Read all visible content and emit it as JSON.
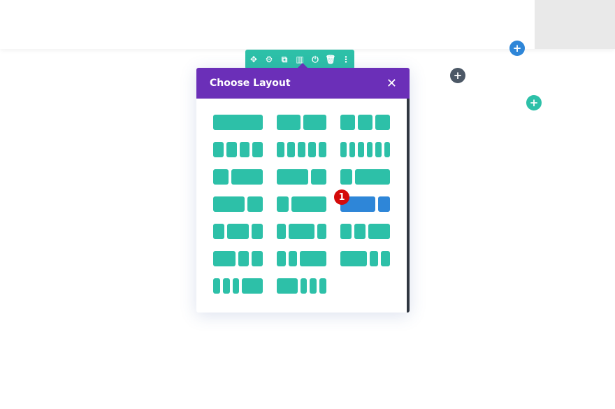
{
  "modal": {
    "title": "Choose Layout",
    "close": "✕"
  },
  "toolbar": {
    "icons": [
      {
        "name": "move-icon",
        "glyph": "✥"
      },
      {
        "name": "gear-icon",
        "glyph": "⚙"
      },
      {
        "name": "duplicate-icon",
        "glyph": "⧉"
      },
      {
        "name": "columns-icon",
        "glyph": "▥"
      },
      {
        "name": "power-icon",
        "glyph": "⏻"
      },
      {
        "name": "trash-icon",
        "glyph": "🗑"
      },
      {
        "name": "more-icon",
        "glyph": "⋮"
      }
    ]
  },
  "add_buttons": {
    "blue": "+",
    "dark": "+",
    "teal": "+"
  },
  "colors": {
    "teal": "#2dc0a8",
    "purple": "#6b2fb8",
    "blue": "#2e86d8",
    "dark": "#4c5866",
    "badge": "#d40a0a"
  },
  "layouts": [
    [
      1
    ],
    [
      1,
      1
    ],
    [
      1,
      1,
      1
    ],
    [
      1,
      1,
      1,
      1
    ],
    [
      1,
      1,
      1,
      1,
      1
    ],
    [
      1,
      1,
      1,
      1,
      1,
      1
    ],
    [
      1,
      2
    ],
    [
      2,
      1
    ],
    [
      1,
      3
    ],
    [
      2,
      1
    ],
    [
      1,
      3
    ],
    [
      3,
      1
    ],
    [
      1,
      2,
      1
    ],
    [
      1,
      3,
      1
    ],
    [
      1,
      1,
      2
    ],
    [
      2,
      1,
      1
    ],
    [
      1,
      1,
      3
    ],
    [
      3,
      1,
      1
    ],
    [
      1,
      1,
      1,
      3
    ],
    [
      3,
      1,
      1,
      1
    ]
  ],
  "selected_layout": 11,
  "badge": "1"
}
